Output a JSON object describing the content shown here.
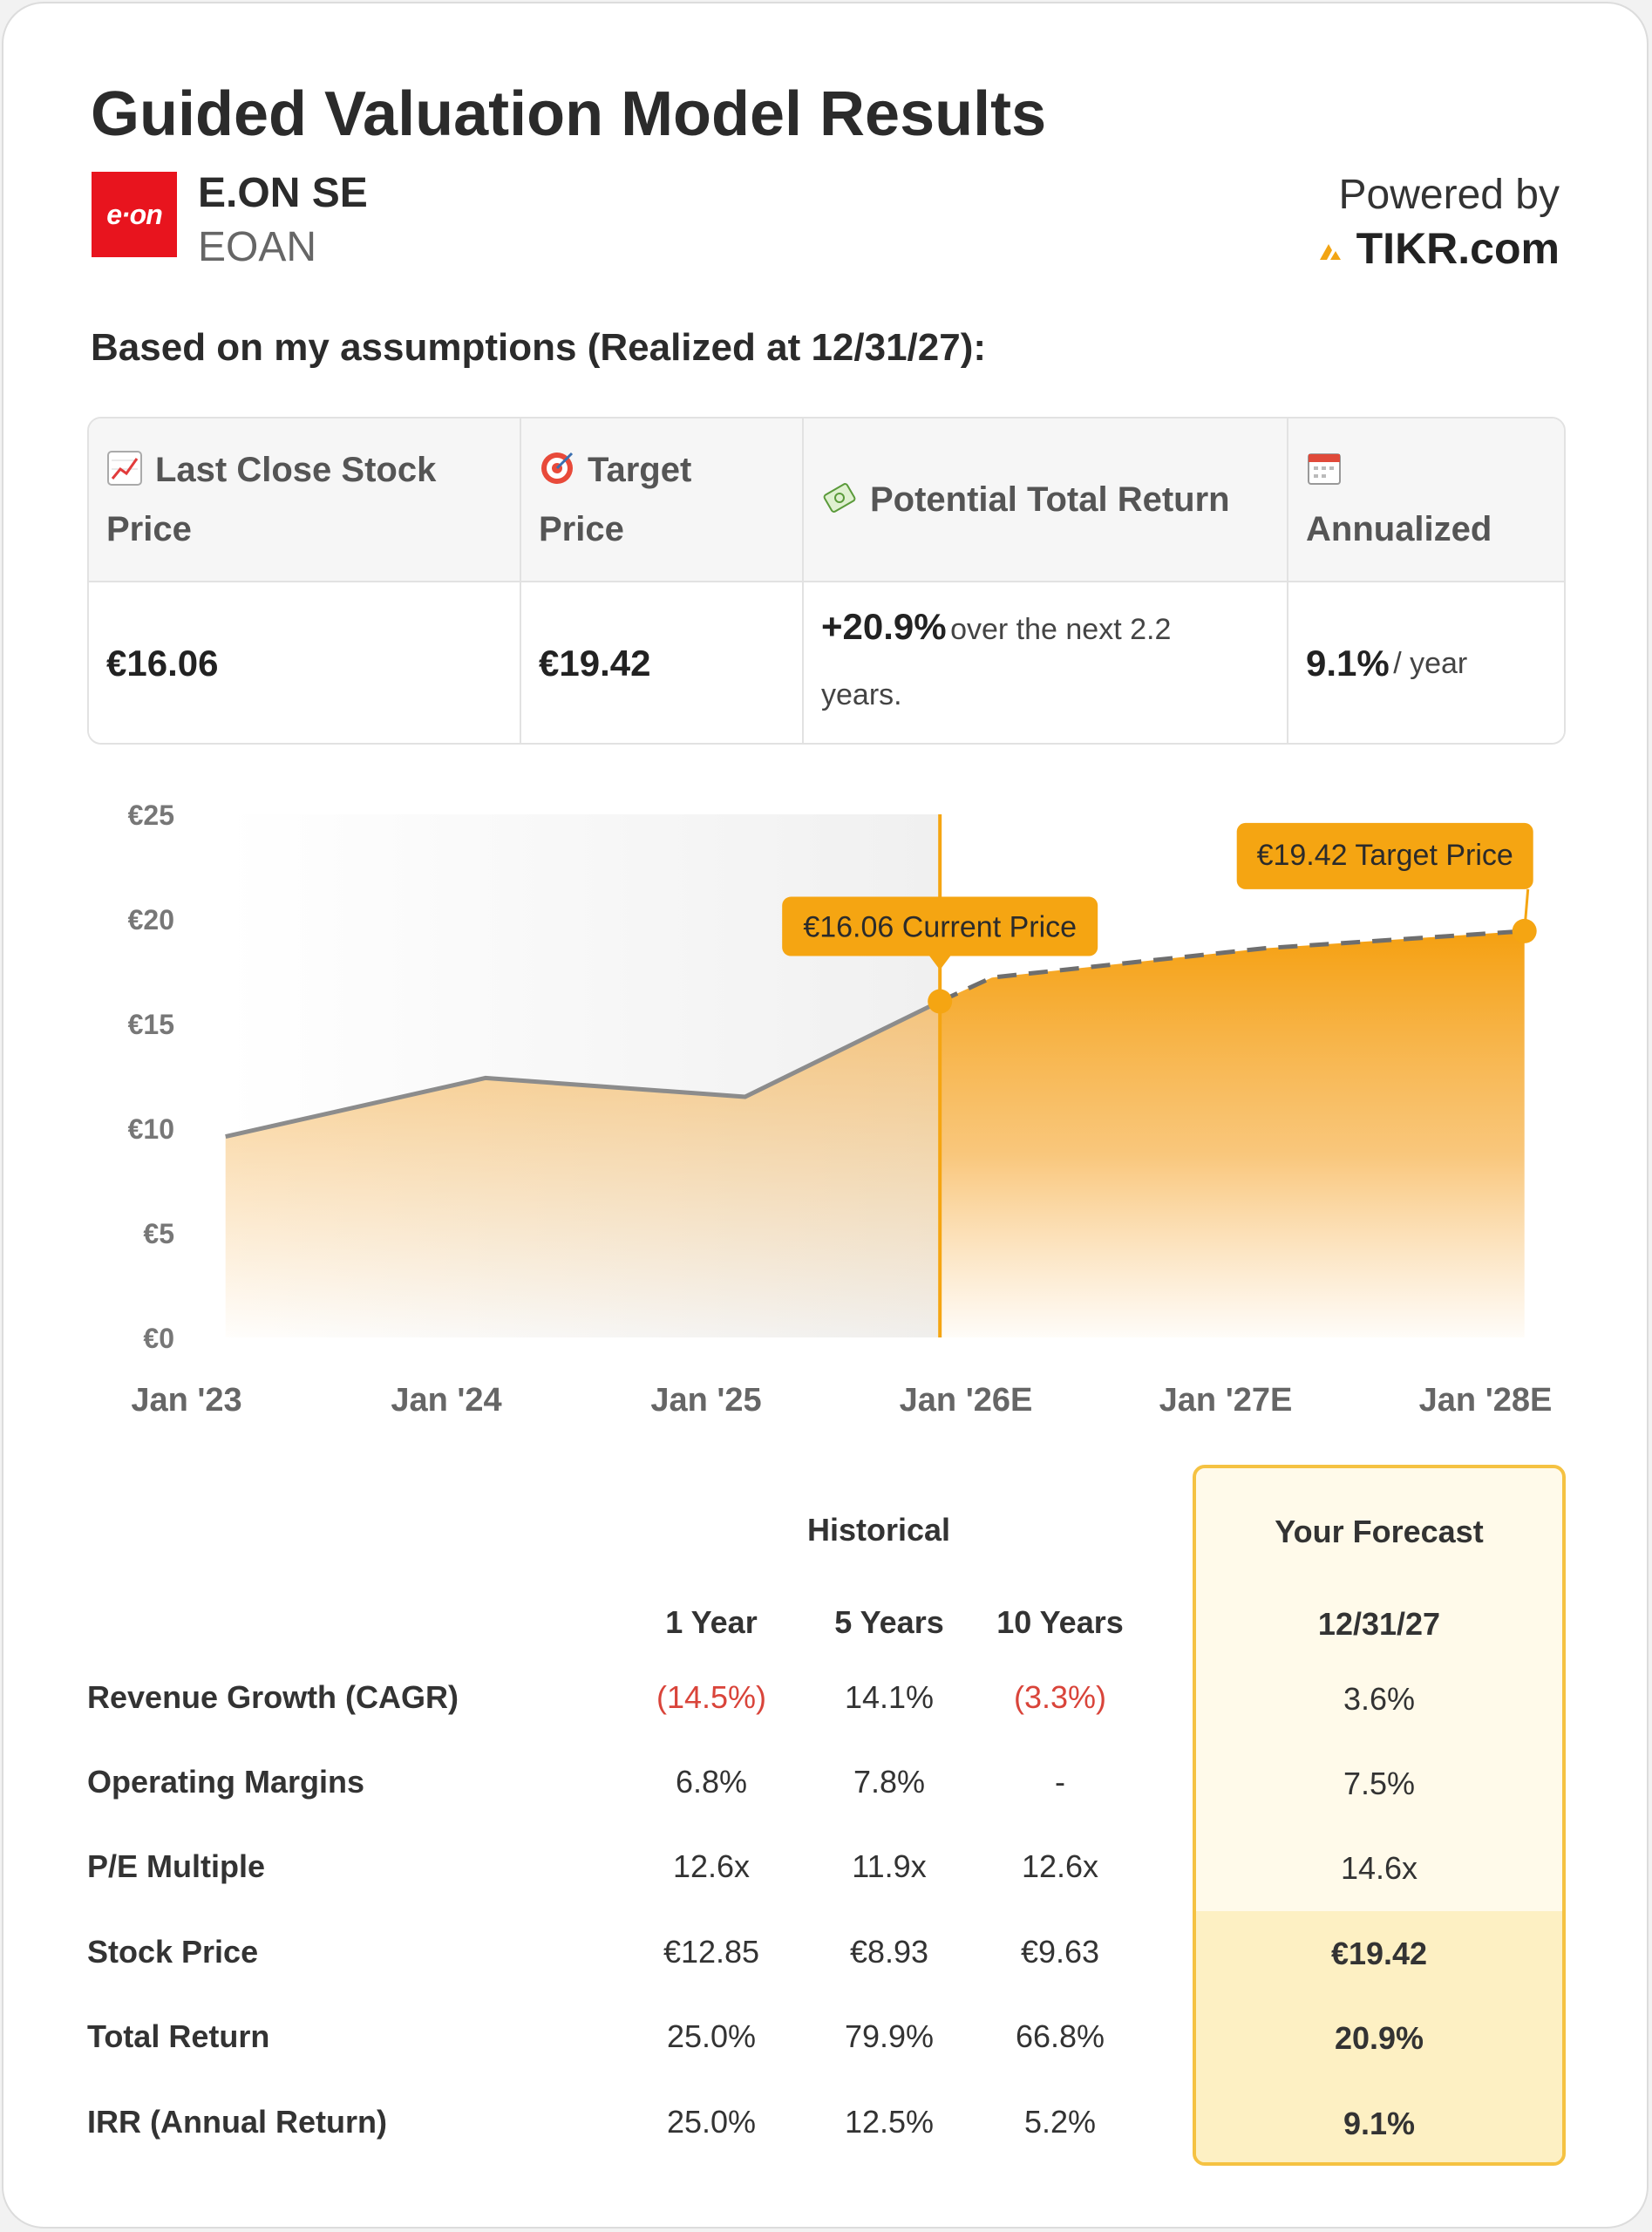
{
  "header": {
    "title": "Guided Valuation Model Results",
    "logo_text": "e·on",
    "company_name": "E.ON SE",
    "ticker": "EOAN",
    "powered_by": "Powered by",
    "brand": "TIKR.com"
  },
  "assumptions_label": "Based on my assumptions (Realized at 12/31/27):",
  "summary": {
    "headers": {
      "last_close_line1": "Last Close Stock",
      "last_close_line2": "Price",
      "target_line1": "Target",
      "target_line2": "Price",
      "potential": "Potential Total Return",
      "annualized": "Annualized"
    },
    "values": {
      "last_close": "€16.06",
      "target": "€19.42",
      "return_pct": "+20.9%",
      "return_text_1": "over the next 2.2",
      "return_text_2": "years.",
      "annualized_pct": "9.1%",
      "annualized_unit": "/ year"
    }
  },
  "chart_data": {
    "type": "area",
    "x": [
      "Jan '23",
      "Jan '24",
      "Jan '25",
      "Jan '26E",
      "Jan '27E",
      "Jan '28E"
    ],
    "y_ticks": [
      "€0",
      "€5",
      "€10",
      "€15",
      "€20",
      "€25"
    ],
    "ylim": [
      0,
      25
    ],
    "series": [
      {
        "style": "historical-solid",
        "points": [
          [
            2023.15,
            9.6
          ],
          [
            2024.15,
            12.4
          ],
          [
            2025.15,
            11.5
          ],
          [
            2025.9,
            16.06
          ]
        ]
      },
      {
        "style": "forecast-dashed",
        "points": [
          [
            2025.9,
            16.06
          ],
          [
            2026.1,
            17.2
          ],
          [
            2027.15,
            18.6
          ],
          [
            2028.15,
            19.42
          ]
        ]
      }
    ],
    "current_marker": {
      "x": 2025.9,
      "y": 16.06,
      "label": "€16.06 Current Price"
    },
    "target_marker": {
      "x": 2028.15,
      "y": 19.42,
      "label": "€19.42 Target Price"
    },
    "accent_color": "#f5a512",
    "line_color": "#8c8c8c"
  },
  "metrics": {
    "historical_label": "Historical",
    "forecast_label": "Your Forecast",
    "columns": [
      "1 Year",
      "5 Years",
      "10 Years"
    ],
    "forecast_column": "12/31/27",
    "rows": [
      {
        "label": "Revenue Growth (CAGR)",
        "values": [
          "(14.5%)",
          "14.1%",
          "(3.3%)"
        ],
        "forecast": "3.6%"
      },
      {
        "label": "Operating Margins",
        "values": [
          "6.8%",
          "7.8%",
          "-"
        ],
        "forecast": "7.5%"
      },
      {
        "label": "P/E Multiple",
        "values": [
          "12.6x",
          "11.9x",
          "12.6x"
        ],
        "forecast": "14.6x"
      },
      {
        "label": "Stock Price",
        "values": [
          "€12.85",
          "€8.93",
          "€9.63"
        ],
        "forecast": "€19.42"
      },
      {
        "label": "Total Return",
        "values": [
          "25.0%",
          "79.9%",
          "66.8%"
        ],
        "forecast": "20.9%"
      },
      {
        "label": "IRR (Annual Return)",
        "values": [
          "25.0%",
          "12.5%",
          "5.2%"
        ],
        "forecast": "9.1%"
      }
    ]
  }
}
